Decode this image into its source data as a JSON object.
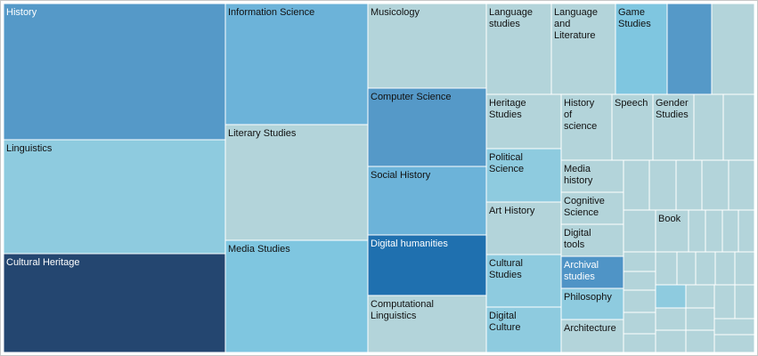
{
  "chart_data": {
    "type": "treemap",
    "items": [
      {
        "label": "History",
        "color": "#5599c8",
        "text_color": "#ffffff"
      },
      {
        "label": "Linguistics",
        "color": "#8ecbdf",
        "text_color": "#111111"
      },
      {
        "label": "Cultural Heritage",
        "color": "#244670",
        "text_color": "#ffffff"
      },
      {
        "label": "Information Science",
        "color": "#6cb3d9",
        "text_color": "#111111"
      },
      {
        "label": "Literary Studies",
        "color": "#b3d4da",
        "text_color": "#111111"
      },
      {
        "label": "Media Studies",
        "color": "#7fc6e0",
        "text_color": "#111111"
      },
      {
        "label": "Musicology",
        "color": "#b3d4da",
        "text_color": "#111111"
      },
      {
        "label": "Computer Science",
        "color": "#5599c8",
        "text_color": "#111111"
      },
      {
        "label": "Social History",
        "color": "#6cb3d9",
        "text_color": "#111111"
      },
      {
        "label": "Digital humanities",
        "color": "#1f70af",
        "text_color": "#ffffff"
      },
      {
        "label": "Computational Linguistics",
        "color": "#b3d4da",
        "text_color": "#111111"
      },
      {
        "label": "Language studies",
        "color": "#b3d4da",
        "text_color": "#111111"
      },
      {
        "label": "Language and Literature",
        "color": "#b3d4da",
        "text_color": "#111111"
      },
      {
        "label": "Game Studies",
        "color": "#7fc6e0",
        "text_color": "#111111"
      },
      {
        "label": "",
        "color": "#5599c8",
        "text_color": "#111111"
      },
      {
        "label": "",
        "color": "#b3d4da",
        "text_color": "#111111"
      },
      {
        "label": "Heritage Studies",
        "color": "#b3d4da",
        "text_color": "#111111"
      },
      {
        "label": "History of science",
        "color": "#b3d4da",
        "text_color": "#111111"
      },
      {
        "label": "Speech",
        "color": "#b3d4da",
        "text_color": "#111111"
      },
      {
        "label": "Gender Studies",
        "color": "#b3d4da",
        "text_color": "#111111"
      },
      {
        "label": "",
        "color": "#b3d4da",
        "text_color": "#111111"
      },
      {
        "label": "",
        "color": "#b3d4da",
        "text_color": "#111111"
      },
      {
        "label": "Political Science",
        "color": "#8ecbdf",
        "text_color": "#111111"
      },
      {
        "label": "Art History",
        "color": "#b3d4da",
        "text_color": "#111111"
      },
      {
        "label": "Cultural Studies",
        "color": "#8ecbdf",
        "text_color": "#111111"
      },
      {
        "label": "Digital Culture",
        "color": "#8ecbdf",
        "text_color": "#111111"
      },
      {
        "label": "Media history",
        "color": "#b3d4da",
        "text_color": "#111111"
      },
      {
        "label": "Cognitive Science",
        "color": "#b3d4da",
        "text_color": "#111111"
      },
      {
        "label": "Digital tools",
        "color": "#b3d4da",
        "text_color": "#111111"
      },
      {
        "label": "Archival studies",
        "color": "#4f94c6",
        "text_color": "#ffffff"
      },
      {
        "label": "Philosophy",
        "color": "#8ecbdf",
        "text_color": "#111111"
      },
      {
        "label": "Architecture",
        "color": "#b3d4da",
        "text_color": "#111111"
      },
      {
        "label": "Book",
        "color": "#b3d4da",
        "text_color": "#111111"
      },
      {
        "label": "",
        "color": "#8ecbdf",
        "text_color": "#111111"
      }
    ],
    "unlabeled_tile_color": "#b3d4da",
    "border_color": "#ffffff"
  }
}
